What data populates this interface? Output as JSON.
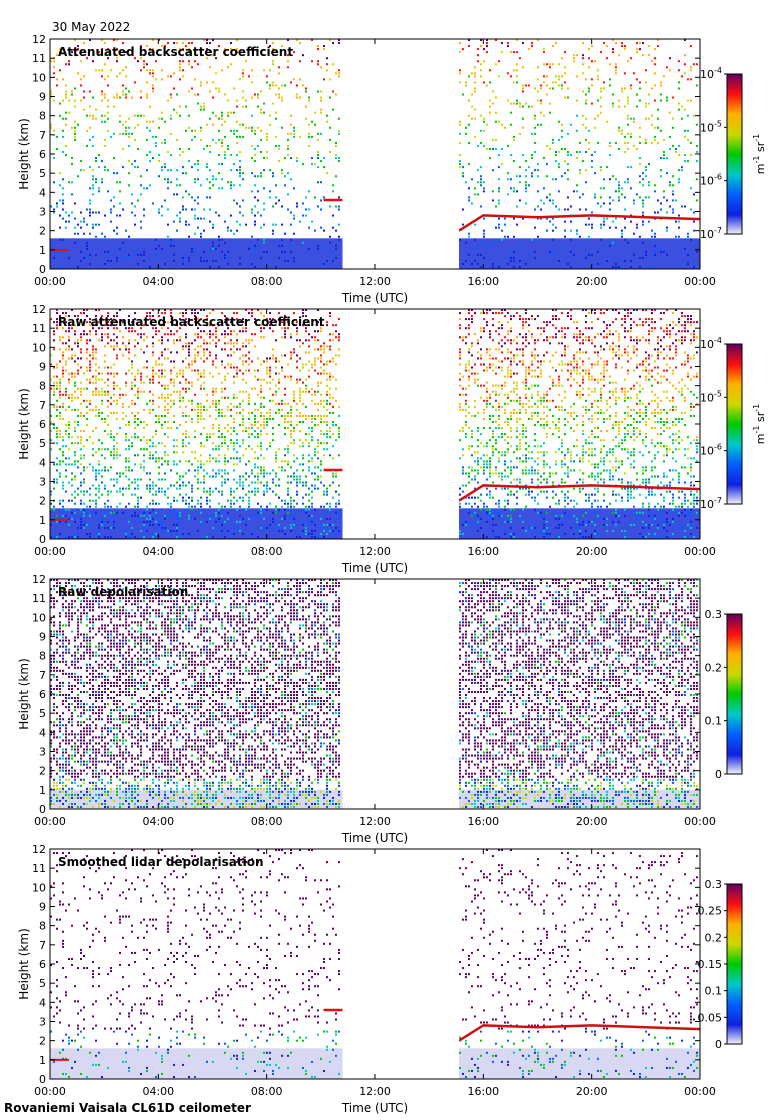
{
  "header": {
    "date": "30 May 2022"
  },
  "footer": {
    "site": "Rovaniemi Vaisala CL61D ceilometer"
  },
  "colors": {
    "scale": [
      "#f4f4f8",
      "#1020e0",
      "#0060ff",
      "#00c8c8",
      "#00c800",
      "#c8d800",
      "#ffb000",
      "#ff1010",
      "#600060"
    ]
  },
  "chart_data": [
    {
      "type": "heatmap",
      "title": "Attenuated backscatter coefficient",
      "xlabel": "Time (UTC)",
      "ylabel": "Height (km)",
      "xticks": [
        "00:00",
        "04:00",
        "08:00",
        "12:00",
        "16:00",
        "20:00",
        "00:00"
      ],
      "yticks": [
        "0",
        "1",
        "2",
        "3",
        "4",
        "5",
        "6",
        "7",
        "8",
        "9",
        "10",
        "11",
        "12"
      ],
      "xlim_hours": [
        0,
        24
      ],
      "ylim_km": [
        0,
        12
      ],
      "data_gap_hours": [
        10.8,
        15.1
      ],
      "colorbar": {
        "scale": "log",
        "ticks": [
          "10",
          "10",
          "10",
          "10"
        ],
        "exponents": [
          "-7",
          "-6",
          "-5",
          "-4"
        ],
        "tick_values": [
          1e-07,
          1e-06,
          1e-05,
          0.0001
        ],
        "range": [
          1e-07,
          0.0001
        ],
        "units": "m",
        "units_exp": "-1",
        "units2": "sr",
        "units2_exp": "-1"
      }
    },
    {
      "type": "heatmap",
      "title": "Raw attenuated backscatter coefficient",
      "xlabel": "Time (UTC)",
      "ylabel": "Height (km)",
      "xticks": [
        "00:00",
        "04:00",
        "08:00",
        "12:00",
        "16:00",
        "20:00",
        "00:00"
      ],
      "yticks": [
        "0",
        "1",
        "2",
        "3",
        "4",
        "5",
        "6",
        "7",
        "8",
        "9",
        "10",
        "11",
        "12"
      ],
      "xlim_hours": [
        0,
        24
      ],
      "ylim_km": [
        0,
        12
      ],
      "data_gap_hours": [
        10.8,
        15.1
      ],
      "colorbar": {
        "scale": "log",
        "ticks": [
          "10",
          "10",
          "10",
          "10"
        ],
        "exponents": [
          "-7",
          "-6",
          "-5",
          "-4"
        ],
        "tick_values": [
          1e-07,
          1e-06,
          1e-05,
          0.0001
        ],
        "range": [
          1e-07,
          0.0001
        ],
        "units": "m",
        "units_exp": "-1",
        "units2": "sr",
        "units2_exp": "-1"
      }
    },
    {
      "type": "heatmap",
      "title": "Raw depolarisation",
      "xlabel": "Time (UTC)",
      "ylabel": "Height (km)",
      "xticks": [
        "00:00",
        "04:00",
        "08:00",
        "12:00",
        "16:00",
        "20:00",
        "00:00"
      ],
      "yticks": [
        "0",
        "1",
        "2",
        "3",
        "4",
        "5",
        "6",
        "7",
        "8",
        "9",
        "10",
        "11",
        "12"
      ],
      "xlim_hours": [
        0,
        24
      ],
      "ylim_km": [
        0,
        12
      ],
      "data_gap_hours": [
        10.8,
        15.1
      ],
      "colorbar": {
        "scale": "linear",
        "ticks": [
          "0",
          "0.1",
          "0.2",
          "0.3"
        ],
        "tick_values": [
          0,
          0.1,
          0.2,
          0.3
        ],
        "range": [
          0,
          0.3
        ]
      }
    },
    {
      "type": "heatmap",
      "title": "Smoothed lidar depolarisation",
      "xlabel": "Time (UTC)",
      "ylabel": "Height (km)",
      "xticks": [
        "00:00",
        "04:00",
        "08:00",
        "12:00",
        "16:00",
        "20:00",
        "00:00"
      ],
      "yticks": [
        "0",
        "1",
        "2",
        "3",
        "4",
        "5",
        "6",
        "7",
        "8",
        "9",
        "10",
        "11",
        "12"
      ],
      "xlim_hours": [
        0,
        24
      ],
      "ylim_km": [
        0,
        12
      ],
      "data_gap_hours": [
        10.8,
        15.1
      ],
      "colorbar": {
        "scale": "linear",
        "ticks": [
          "0",
          "0.05",
          "0.1",
          "0.15",
          "0.2",
          "0.25",
          "0.3"
        ],
        "tick_values": [
          0,
          0.05,
          0.1,
          0.15,
          0.2,
          0.25,
          0.3
        ],
        "range": [
          0,
          0.3
        ]
      }
    }
  ]
}
